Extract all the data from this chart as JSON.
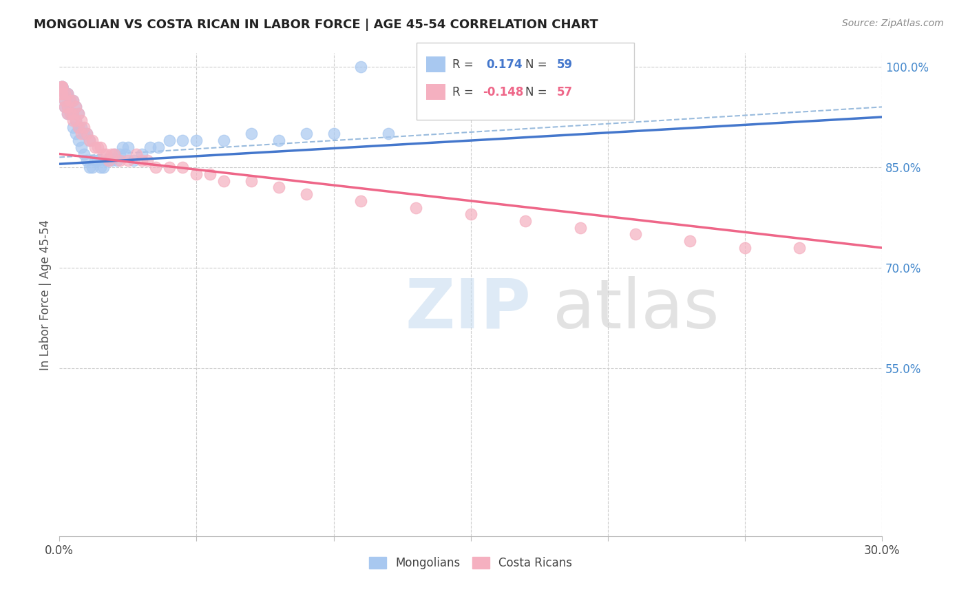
{
  "title": "MONGOLIAN VS COSTA RICAN IN LABOR FORCE | AGE 45-54 CORRELATION CHART",
  "source": "Source: ZipAtlas.com",
  "ylabel": "In Labor Force | Age 45-54",
  "xmin": 0.0,
  "xmax": 0.3,
  "ymin": 0.3,
  "ymax": 1.02,
  "blue_color": "#a8c8f0",
  "pink_color": "#f5b0c0",
  "blue_line_color": "#4477cc",
  "pink_line_color": "#ee6688",
  "dashed_line_color": "#99bbdd",
  "mongolian_x": [
    0.001,
    0.001,
    0.001,
    0.001,
    0.001,
    0.002,
    0.002,
    0.002,
    0.003,
    0.003,
    0.003,
    0.003,
    0.004,
    0.004,
    0.005,
    0.005,
    0.005,
    0.006,
    0.006,
    0.006,
    0.007,
    0.007,
    0.007,
    0.008,
    0.008,
    0.009,
    0.009,
    0.01,
    0.01,
    0.011,
    0.011,
    0.012,
    0.013,
    0.014,
    0.015,
    0.016,
    0.017,
    0.018,
    0.019,
    0.02,
    0.021,
    0.022,
    0.023,
    0.024,
    0.025,
    0.027,
    0.03,
    0.033,
    0.036,
    0.04,
    0.045,
    0.05,
    0.06,
    0.07,
    0.08,
    0.09,
    0.1,
    0.11,
    0.12
  ],
  "mongolian_y": [
    0.97,
    0.97,
    0.97,
    0.97,
    0.97,
    0.94,
    0.95,
    0.96,
    0.93,
    0.94,
    0.96,
    0.96,
    0.93,
    0.95,
    0.91,
    0.93,
    0.95,
    0.9,
    0.92,
    0.94,
    0.89,
    0.91,
    0.93,
    0.88,
    0.91,
    0.87,
    0.9,
    0.86,
    0.9,
    0.85,
    0.89,
    0.85,
    0.86,
    0.86,
    0.85,
    0.85,
    0.86,
    0.86,
    0.86,
    0.87,
    0.86,
    0.87,
    0.88,
    0.87,
    0.88,
    0.86,
    0.87,
    0.88,
    0.88,
    0.89,
    0.89,
    0.89,
    0.89,
    0.9,
    0.89,
    0.9,
    0.9,
    1.0,
    0.9
  ],
  "costa_rican_x": [
    0.001,
    0.001,
    0.001,
    0.001,
    0.001,
    0.002,
    0.002,
    0.002,
    0.003,
    0.003,
    0.003,
    0.004,
    0.004,
    0.005,
    0.005,
    0.005,
    0.006,
    0.006,
    0.007,
    0.007,
    0.008,
    0.008,
    0.009,
    0.01,
    0.011,
    0.012,
    0.013,
    0.014,
    0.015,
    0.016,
    0.017,
    0.018,
    0.019,
    0.02,
    0.022,
    0.025,
    0.028,
    0.03,
    0.032,
    0.035,
    0.04,
    0.045,
    0.05,
    0.055,
    0.06,
    0.07,
    0.08,
    0.09,
    0.11,
    0.13,
    0.15,
    0.17,
    0.19,
    0.21,
    0.23,
    0.25,
    0.27
  ],
  "costa_rican_y": [
    0.96,
    0.96,
    0.97,
    0.97,
    0.97,
    0.94,
    0.95,
    0.96,
    0.93,
    0.94,
    0.96,
    0.93,
    0.95,
    0.92,
    0.93,
    0.95,
    0.92,
    0.94,
    0.91,
    0.93,
    0.9,
    0.92,
    0.91,
    0.9,
    0.89,
    0.89,
    0.88,
    0.88,
    0.88,
    0.87,
    0.87,
    0.86,
    0.87,
    0.87,
    0.86,
    0.86,
    0.87,
    0.86,
    0.86,
    0.85,
    0.85,
    0.85,
    0.84,
    0.84,
    0.83,
    0.83,
    0.82,
    0.81,
    0.8,
    0.79,
    0.78,
    0.77,
    0.76,
    0.75,
    0.74,
    0.73,
    0.73
  ]
}
